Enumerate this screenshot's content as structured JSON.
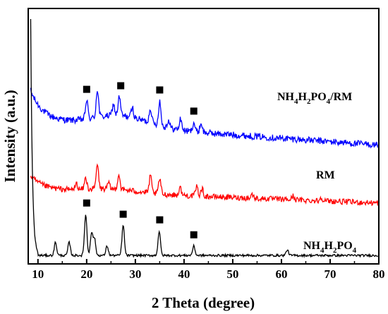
{
  "chart_data": {
    "type": "line",
    "title": "",
    "xlabel": "2 Theta (degree)",
    "ylabel": "Intensity (a.u.)",
    "xlim": [
      8,
      80
    ],
    "xticks": [
      10,
      20,
      30,
      40,
      50,
      60,
      70,
      80
    ],
    "yticks_shown": false,
    "grid": false,
    "marker_symbol": "■",
    "series": [
      {
        "name": "NH4H2PO4/RM",
        "label_parts": {
          "a": "NH",
          "b": "4",
          "c": "H",
          "d": "2",
          "e": "PO",
          "f": "4",
          "g": "/RM"
        },
        "color": "#0000ff",
        "baseline": 0.7,
        "peaks": [
          [
            20.0,
            0.1
          ],
          [
            22.2,
            0.15
          ],
          [
            25.5,
            0.06
          ],
          [
            26.7,
            0.1
          ],
          [
            29.4,
            0.05
          ],
          [
            33.1,
            0.08
          ],
          [
            35.0,
            0.13
          ],
          [
            36.8,
            0.04
          ],
          [
            39.3,
            0.06
          ],
          [
            42.0,
            0.05
          ],
          [
            43.5,
            0.05
          ]
        ],
        "marker_x": [
          20.0,
          27.0,
          35.0,
          42.0
        ]
      },
      {
        "name": "RM",
        "label_parts": {
          "a": "RM"
        },
        "color": "#ff0000",
        "baseline": 0.34,
        "peaks": [
          [
            17.9,
            0.03
          ],
          [
            19.8,
            0.06
          ],
          [
            22.2,
            0.13
          ],
          [
            24.5,
            0.03
          ],
          [
            26.6,
            0.08
          ],
          [
            33.1,
            0.09
          ],
          [
            35.0,
            0.08
          ],
          [
            39.2,
            0.04
          ],
          [
            42.6,
            0.05
          ],
          [
            43.7,
            0.04
          ],
          [
            54.0,
            0.02
          ],
          [
            62.4,
            0.02
          ],
          [
            68.2,
            0.02
          ]
        ],
        "marker_x": []
      },
      {
        "name": "NH4H2PO4",
        "label_parts": {
          "a": "NH",
          "b": "4",
          "c": "H",
          "d": "2",
          "e": "PO",
          "f": "4"
        },
        "color": "#000000",
        "baseline": 0.0,
        "peaks": [
          [
            13.6,
            0.07
          ],
          [
            16.4,
            0.07
          ],
          [
            19.8,
            0.22
          ],
          [
            21.0,
            0.12
          ],
          [
            21.6,
            0.09
          ],
          [
            24.2,
            0.05
          ],
          [
            27.5,
            0.16
          ],
          [
            34.9,
            0.13
          ],
          [
            42.0,
            0.05
          ],
          [
            61.2,
            0.03
          ]
        ],
        "marker_x": [
          20.0,
          27.5,
          35.0,
          42.0
        ]
      }
    ]
  }
}
